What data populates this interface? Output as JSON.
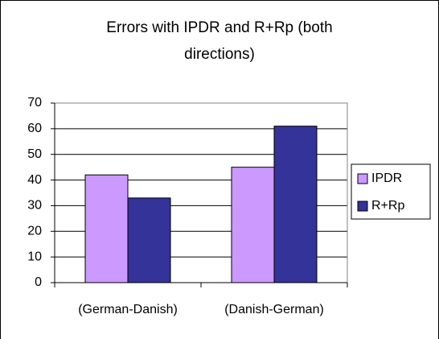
{
  "chart_data": {
    "type": "bar",
    "title": "Errors with IPDR and R+Rp (both directions)",
    "categories": [
      "(German-Danish)",
      "(Danish-German)"
    ],
    "series": [
      {
        "name": "IPDR",
        "color": "#cc99ff",
        "values": [
          42,
          45
        ]
      },
      {
        "name": "R+Rp",
        "color": "#333399",
        "values": [
          33,
          61
        ]
      }
    ],
    "ylim": [
      0,
      70
    ],
    "yticks": [
      0,
      10,
      20,
      30,
      40,
      50,
      60,
      70
    ],
    "grid": true,
    "legend": "right"
  }
}
